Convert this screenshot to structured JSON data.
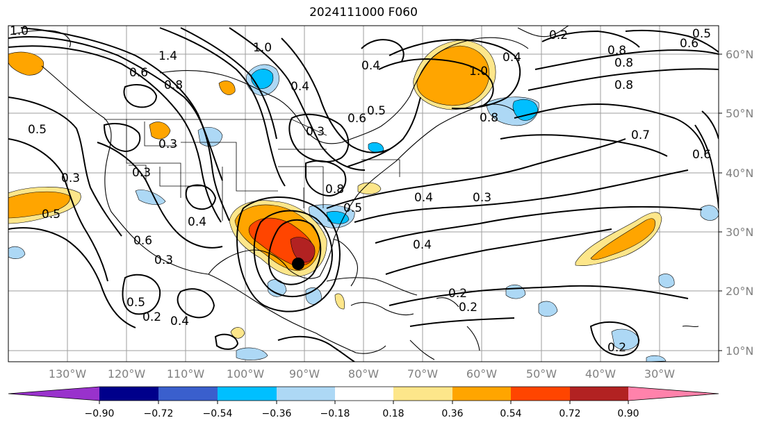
{
  "title": "2024111000 F060",
  "map": {
    "lat_ticks": [
      "60°N",
      "50°N",
      "40°N",
      "30°N",
      "20°N",
      "10°N"
    ],
    "lon_ticks": [
      "130°W",
      "120°W",
      "110°W",
      "100°W",
      "90°W",
      "80°W",
      "70°W",
      "60°W",
      "50°W",
      "40°W",
      "30°W"
    ],
    "contour_labels": [
      "1.0",
      "1.4",
      "0.6",
      "0.8",
      "0.3",
      "0.5",
      "0.3",
      "0.5",
      "0.3",
      "0.6",
      "0.3",
      "0.5",
      "0.2",
      "0.4",
      "1.0",
      "0.4",
      "0.6",
      "0.5",
      "0.4",
      "0.3",
      "0.8",
      "0.5",
      "0.4",
      "0.3",
      "0.4",
      "0.2",
      "0.2",
      "1.0",
      "0.4",
      "0.8",
      "0.8",
      "0.8",
      "0.7",
      "0.6",
      "0.5",
      "0.2",
      "0.8",
      "0.2",
      "0.6",
      "0.4"
    ],
    "storm_marker": "storm-center"
  },
  "colorbar": {
    "ticks": [
      "−0.90",
      "−0.72",
      "−0.54",
      "−0.36",
      "−0.18",
      "0.18",
      "0.36",
      "0.54",
      "0.72",
      "0.90"
    ],
    "colors": [
      "#9932cc",
      "#00008b",
      "#3a5fcd",
      "#00bfff",
      "#add8f5",
      "#ffffff",
      "#fde68a",
      "#ffa500",
      "#ff4500",
      "#b22222",
      "#ff82ab"
    ]
  }
}
